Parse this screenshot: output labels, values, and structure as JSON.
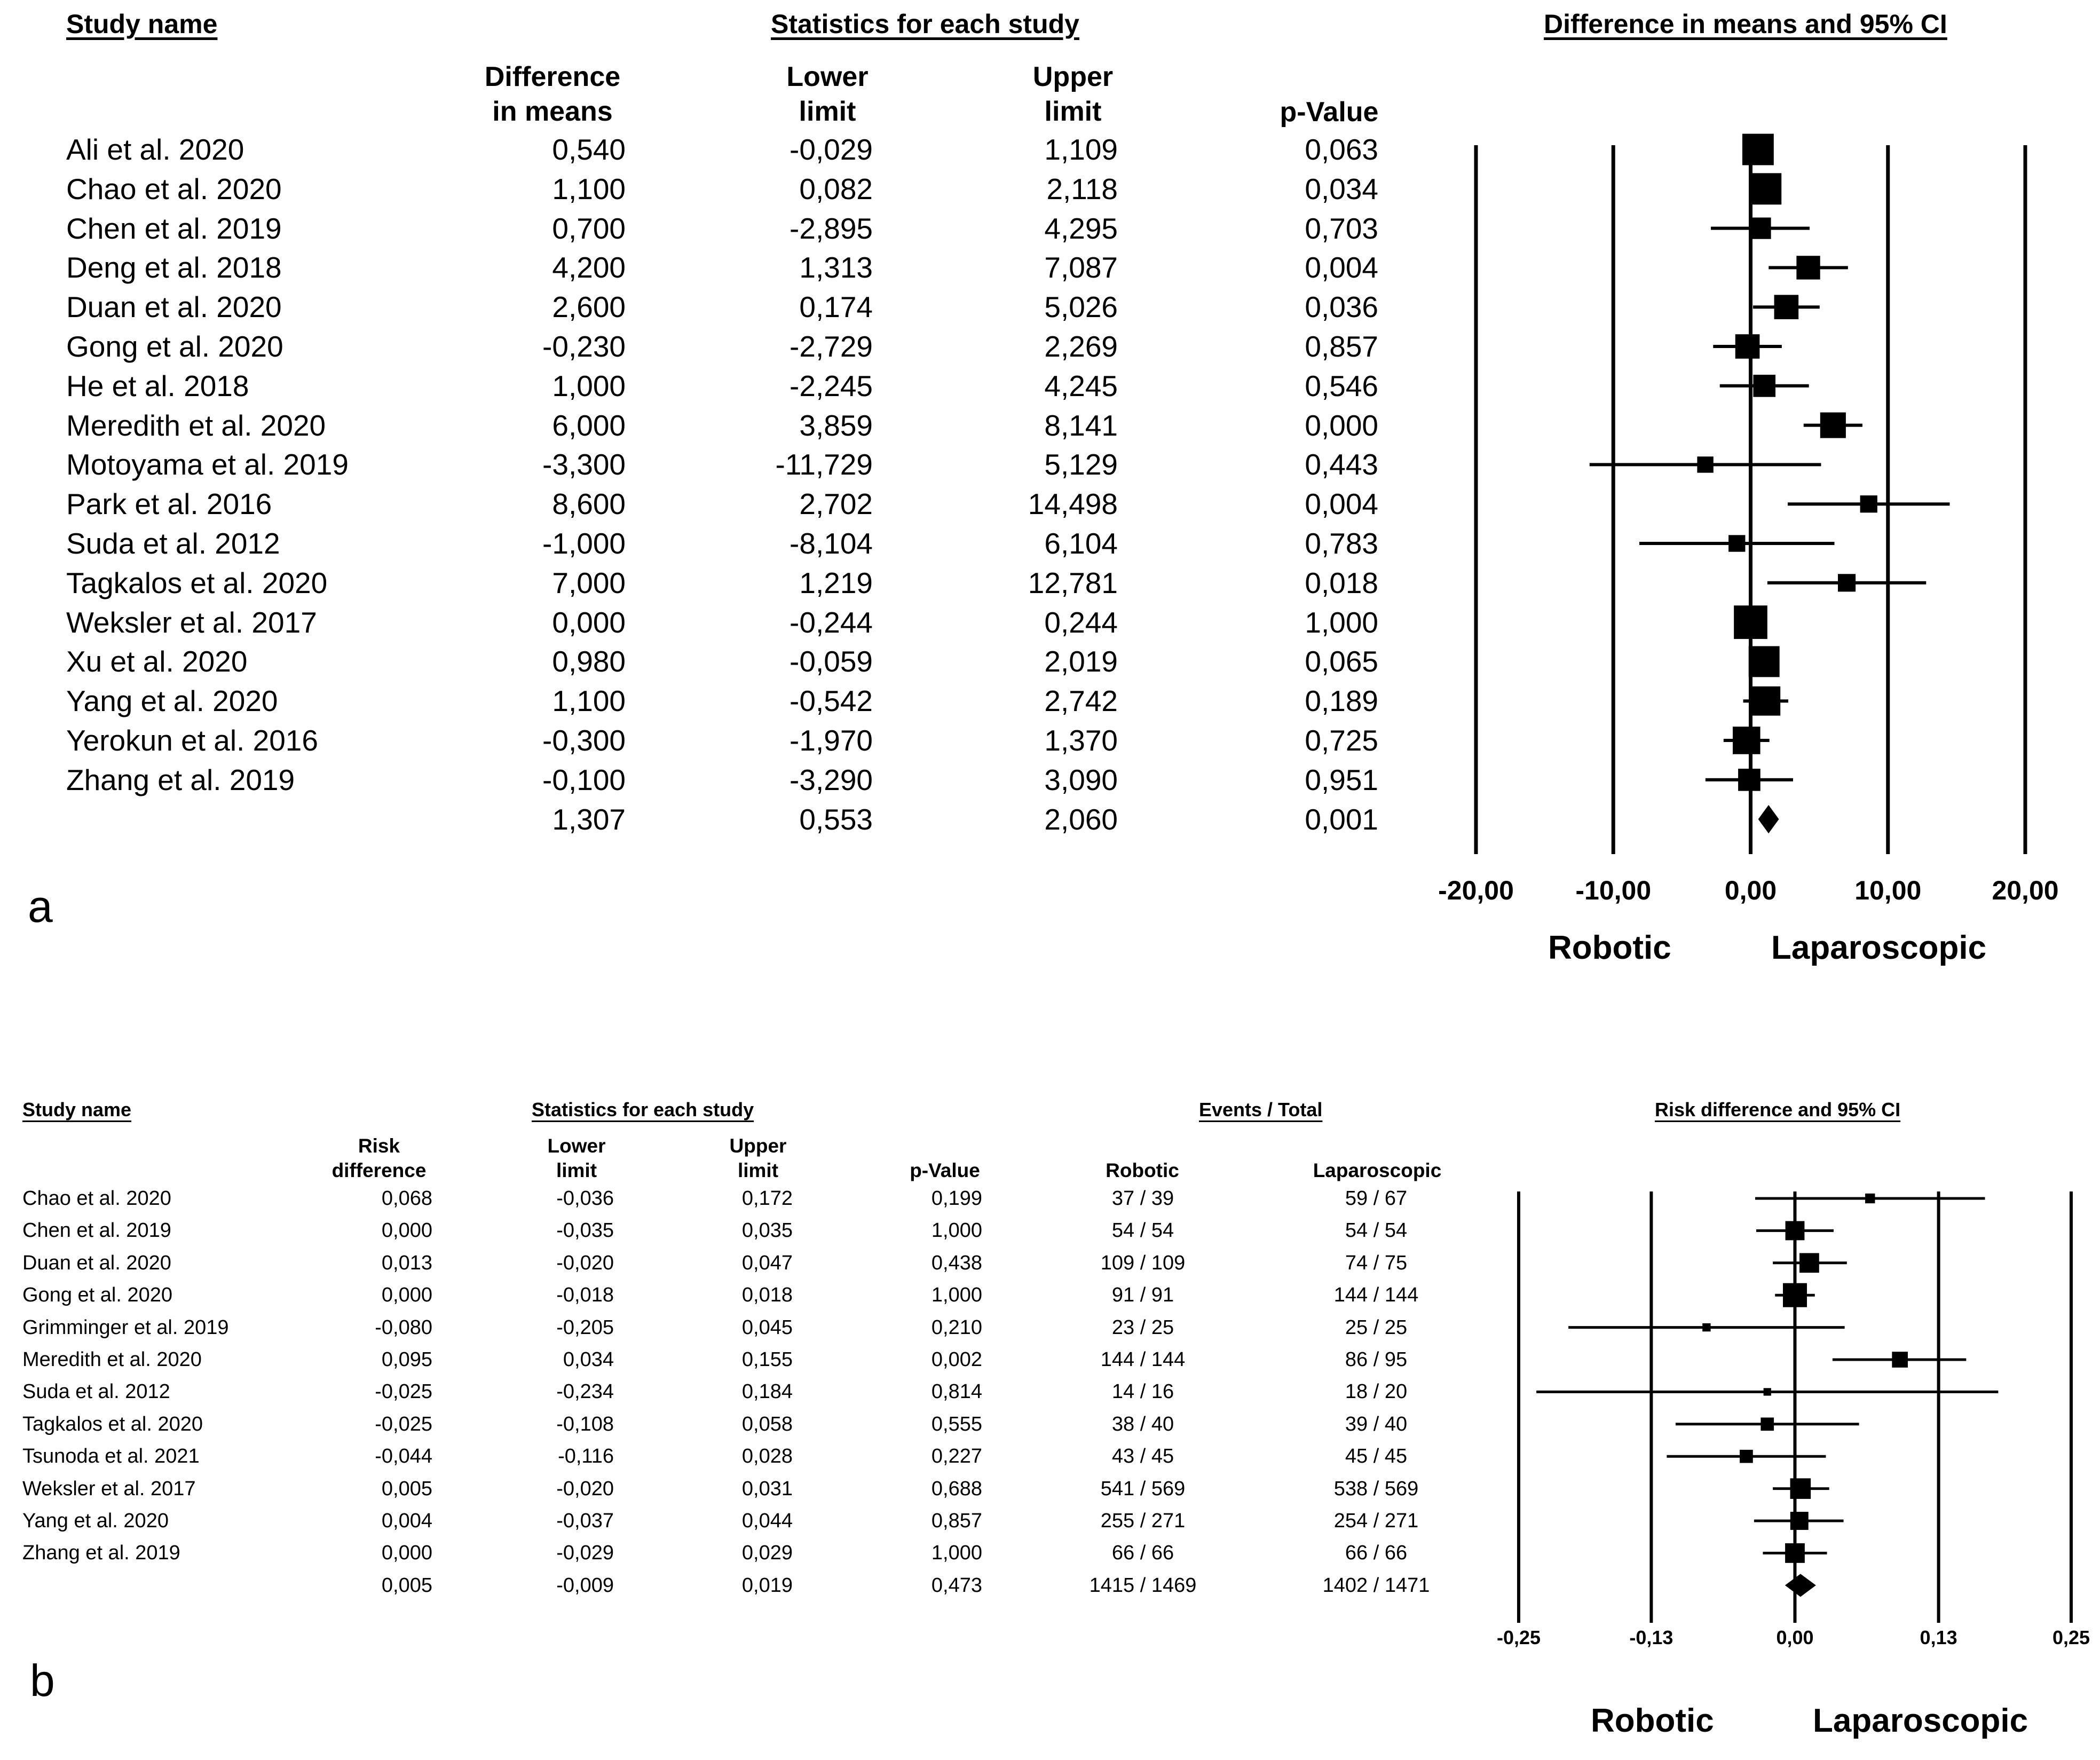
{
  "chart_data": [
    {
      "type": "forest",
      "panel_label": "a",
      "headers": {
        "study": "Study name",
        "stats": "Statistics for each study",
        "plot": "Difference in means and 95% CI"
      },
      "columns": {
        "effect": [
          "Difference",
          "in means"
        ],
        "lower": [
          "Lower",
          "limit"
        ],
        "upper": [
          "Upper",
          "limit"
        ],
        "p": "p-Value"
      },
      "studies": [
        {
          "name": "Ali et al. 2020",
          "effect": "0,540",
          "lower": "-0,029",
          "upper": "1,109",
          "p": "0,063",
          "est": 0.54,
          "lo": -0.029,
          "hi": 1.109,
          "w": 3
        },
        {
          "name": "Chao et al. 2020",
          "effect": "1,100",
          "lower": "0,082",
          "upper": "2,118",
          "p": "0,034",
          "est": 1.1,
          "lo": 0.082,
          "hi": 2.118,
          "w": 3
        },
        {
          "name": "Chen et al. 2019",
          "effect": "0,700",
          "lower": "-2,895",
          "upper": "4,295",
          "p": "0,703",
          "est": 0.7,
          "lo": -2.895,
          "hi": 4.295,
          "w": 1.4
        },
        {
          "name": "Deng et al. 2018",
          "effect": "4,200",
          "lower": "1,313",
          "upper": "7,087",
          "p": "0,004",
          "est": 4.2,
          "lo": 1.313,
          "hi": 7.087,
          "w": 1.7
        },
        {
          "name": "Duan et al. 2020",
          "effect": "2,600",
          "lower": "0,174",
          "upper": "5,026",
          "p": "0,036",
          "est": 2.6,
          "lo": 0.174,
          "hi": 5.026,
          "w": 1.8
        },
        {
          "name": "Gong et al. 2020",
          "effect": "-0,230",
          "lower": "-2,729",
          "upper": "2,269",
          "p": "0,857",
          "est": -0.23,
          "lo": -2.729,
          "hi": 2.269,
          "w": 1.8
        },
        {
          "name": "He et al. 2018",
          "effect": "1,000",
          "lower": "-2,245",
          "upper": "4,245",
          "p": "0,546",
          "est": 1.0,
          "lo": -2.245,
          "hi": 4.245,
          "w": 1.5
        },
        {
          "name": "Meredith et al. 2020",
          "effect": "6,000",
          "lower": "3,859",
          "upper": "8,141",
          "p": "0,000",
          "est": 6.0,
          "lo": 3.859,
          "hi": 8.141,
          "w": 2.0
        },
        {
          "name": "Motoyama et al. 2019",
          "effect": "-3,300",
          "lower": "-11,729",
          "upper": "5,129",
          "p": "0,443",
          "est": -3.3,
          "lo": -11.729,
          "hi": 5.129,
          "w": 0.8
        },
        {
          "name": "Park et al. 2016",
          "effect": "8,600",
          "lower": "2,702",
          "upper": "14,498",
          "p": "0,004",
          "est": 8.6,
          "lo": 2.702,
          "hi": 14.498,
          "w": 0.9
        },
        {
          "name": "Suda et al. 2012",
          "effect": "-1,000",
          "lower": "-8,104",
          "upper": "6,104",
          "p": "0,783",
          "est": -1.0,
          "lo": -8.104,
          "hi": 6.104,
          "w": 0.85
        },
        {
          "name": "Tagkalos et al. 2020",
          "effect": "7,000",
          "lower": "1,219",
          "upper": "12,781",
          "p": "0,018",
          "est": 7.0,
          "lo": 1.219,
          "hi": 12.781,
          "w": 0.95
        },
        {
          "name": "Weksler et al. 2017",
          "effect": "0,000",
          "lower": "-0,244",
          "upper": "0,244",
          "p": "1,000",
          "est": 0.0,
          "lo": -0.244,
          "hi": 0.244,
          "w": 3.4
        },
        {
          "name": "Xu et al. 2020",
          "effect": "0,980",
          "lower": "-0,059",
          "upper": "2,019",
          "p": "0,065",
          "est": 0.98,
          "lo": -0.059,
          "hi": 2.019,
          "w": 2.9
        },
        {
          "name": "Yang et al. 2020",
          "effect": "1,100",
          "lower": "-0,542",
          "upper": "2,742",
          "p": "0,189",
          "est": 1.1,
          "lo": -0.542,
          "hi": 2.742,
          "w": 2.6
        },
        {
          "name": "Yerokun et al. 2016",
          "effect": "-0,300",
          "lower": "-1,970",
          "upper": "1,370",
          "p": "0,725",
          "est": -0.3,
          "lo": -1.97,
          "hi": 1.37,
          "w": 2.3
        },
        {
          "name": "Zhang et al. 2019",
          "effect": "-0,100",
          "lower": "-3,290",
          "upper": "3,090",
          "p": "0,951",
          "est": -0.1,
          "lo": -3.29,
          "hi": 3.09,
          "w": 1.5
        }
      ],
      "overall": {
        "effect": "1,307",
        "lower": "0,553",
        "upper": "2,060",
        "p": "0,001",
        "est": 1.307,
        "lo": 0.553,
        "hi": 2.06
      },
      "xlim": [
        -20,
        20
      ],
      "xticks": [
        -20,
        -10,
        0,
        10,
        20
      ],
      "xtick_labels": [
        "-20,00",
        "-10,00",
        "0,00",
        "10,00",
        "20,00"
      ],
      "left_label": "Robotic",
      "right_label": "Laparoscopic"
    },
    {
      "type": "forest",
      "panel_label": "b",
      "headers": {
        "study": "Study name",
        "stats": "Statistics for each study",
        "events": "Events / Total",
        "plot": "Risk difference and 95%  CI"
      },
      "columns": {
        "effect": [
          "Risk",
          "difference"
        ],
        "lower": [
          "Lower",
          "limit"
        ],
        "upper": [
          "Upper",
          "limit"
        ],
        "p": "p-Value",
        "robotic": "Robotic",
        "lap": "Laparoscopic"
      },
      "studies": [
        {
          "name": "Chao et al. 2020",
          "effect": "0,068",
          "lower": "-0,036",
          "upper": "0,172",
          "p": "0,199",
          "rob": "37 / 39",
          "lap": "59 / 67",
          "est": 0.068,
          "lo": -0.036,
          "hi": 0.172,
          "w": 0.5
        },
        {
          "name": "Chen et al. 2019",
          "effect": "0,000",
          "lower": "-0,035",
          "upper": "0,035",
          "p": "1,000",
          "rob": "54 / 54",
          "lap": "54 / 54",
          "est": 0.0,
          "lo": -0.035,
          "hi": 0.035,
          "w": 1.9
        },
        {
          "name": "Duan et al. 2020",
          "effect": "0,013",
          "lower": "-0,020",
          "upper": "0,047",
          "p": "0,438",
          "rob": "109 / 109",
          "lap": "74 / 75",
          "est": 0.013,
          "lo": -0.02,
          "hi": 0.047,
          "w": 2.0
        },
        {
          "name": "Gong et al. 2020",
          "effect": "0,000",
          "lower": "-0,018",
          "upper": "0,018",
          "p": "1,000",
          "rob": "91 / 91",
          "lap": "144 / 144",
          "est": 0.0,
          "lo": -0.018,
          "hi": 0.018,
          "w": 3.0
        },
        {
          "name": "Grimminger et al. 2019",
          "effect": "-0,080",
          "lower": "-0,205",
          "upper": "0,045",
          "p": "0,210",
          "rob": "23 / 25",
          "lap": "25 / 25",
          "est": -0.08,
          "lo": -0.205,
          "hi": 0.045,
          "w": 0.35
        },
        {
          "name": "Meredith et al. 2020",
          "effect": "0,095",
          "lower": "0,034",
          "upper": "0,155",
          "p": "0,002",
          "rob": "144 / 144",
          "lap": "86 / 95",
          "est": 0.095,
          "lo": 0.034,
          "hi": 0.155,
          "w": 1.3
        },
        {
          "name": "Suda et al. 2012",
          "effect": "-0,025",
          "lower": "-0,234",
          "upper": "0,184",
          "p": "0,814",
          "rob": "14 / 16",
          "lap": "18 / 20",
          "est": -0.025,
          "lo": -0.234,
          "hi": 0.184,
          "w": 0.3
        },
        {
          "name": "Tagkalos et al. 2020",
          "effect": "-0,025",
          "lower": "-0,108",
          "upper": "0,058",
          "p": "0,555",
          "rob": "38 / 40",
          "lap": "39 / 40",
          "est": -0.025,
          "lo": -0.108,
          "hi": 0.058,
          "w": 0.9
        },
        {
          "name": "Tsunoda et al. 2021",
          "effect": "-0,044",
          "lower": "-0,116",
          "upper": "0,028",
          "p": "0,227",
          "rob": "43 / 45",
          "lap": "45 / 45",
          "est": -0.044,
          "lo": -0.116,
          "hi": 0.028,
          "w": 0.9
        },
        {
          "name": "Weksler et al. 2017",
          "effect": "0,005",
          "lower": "-0,020",
          "upper": "0,031",
          "p": "0,688",
          "rob": "541 / 569",
          "lap": "538 / 569",
          "est": 0.005,
          "lo": -0.02,
          "hi": 0.031,
          "w": 2.2
        },
        {
          "name": "Yang et al. 2020",
          "effect": "0,004",
          "lower": "-0,037",
          "upper": "0,044",
          "p": "0,857",
          "rob": "255 / 271",
          "lap": "254 / 271",
          "est": 0.004,
          "lo": -0.037,
          "hi": 0.044,
          "w": 1.7
        },
        {
          "name": "Zhang et al. 2019",
          "effect": "0,000",
          "lower": "-0,029",
          "upper": "0,029",
          "p": "1,000",
          "rob": "66 / 66",
          "lap": "66 / 66",
          "est": 0.0,
          "lo": -0.029,
          "hi": 0.029,
          "w": 2.0
        }
      ],
      "overall": {
        "effect": "0,005",
        "lower": "-0,009",
        "upper": "0,019",
        "p": "0,473",
        "rob": "1415 / 1469",
        "lap": "1402 / 1471",
        "est": 0.005,
        "lo": -0.009,
        "hi": 0.019
      },
      "xlim": [
        -0.25,
        0.25
      ],
      "xticks": [
        -0.25,
        -0.13,
        0,
        0.13,
        0.25
      ],
      "xtick_labels": [
        "-0,25",
        "-0,13",
        "0,00",
        "0,13",
        "0,25"
      ],
      "left_label": "Robotic",
      "right_label": "Laparoscopic"
    }
  ]
}
